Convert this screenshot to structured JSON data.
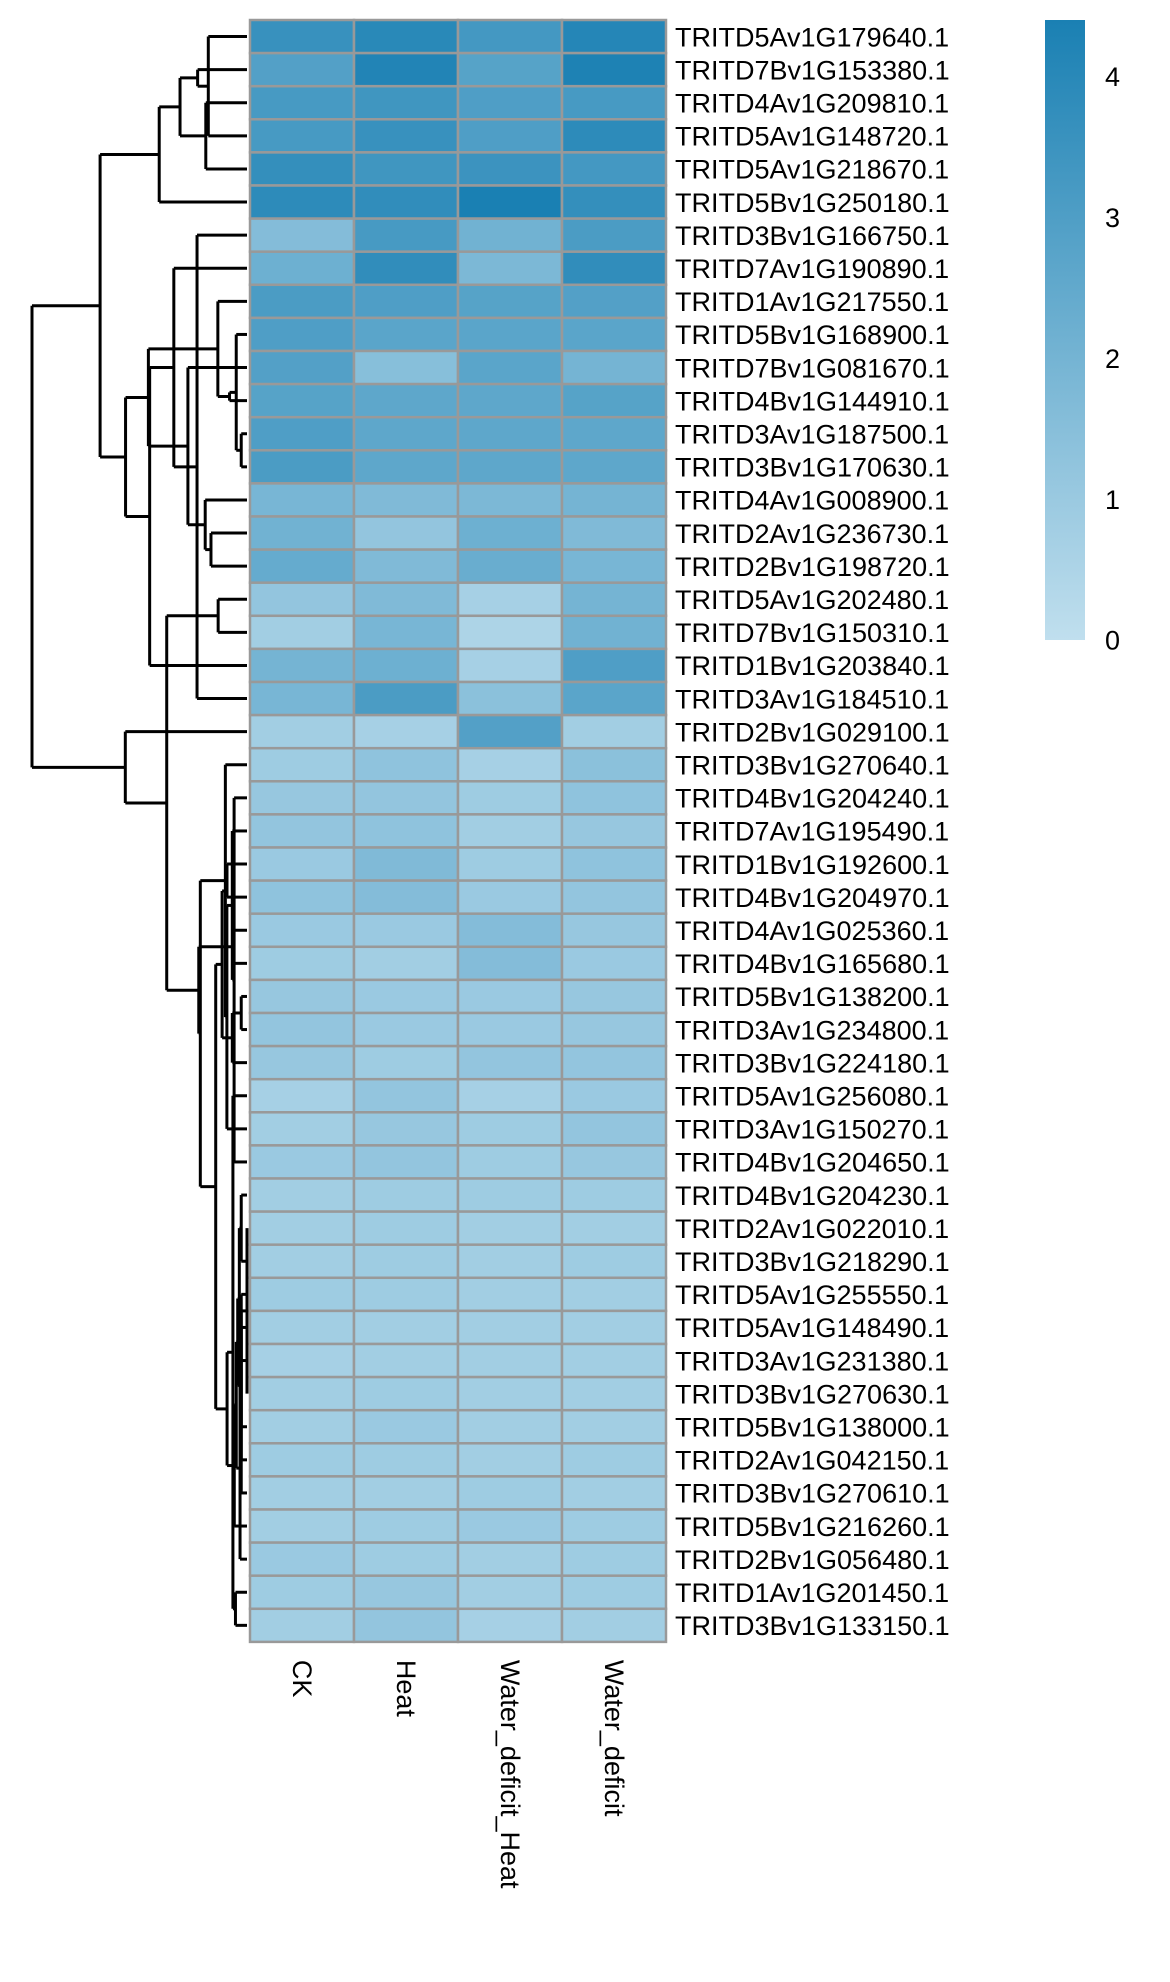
{
  "chart_data": {
    "type": "heatmap",
    "title": "",
    "xlabel": "",
    "ylabel": "",
    "columns": [
      "CK",
      "Heat",
      "Water_deficit_Heat",
      "Water_deficit"
    ],
    "rows": [
      "TRITD5Av1G179640.1",
      "TRITD7Bv1G153380.1",
      "TRITD4Av1G209810.1",
      "TRITD5Av1G148720.1",
      "TRITD5Av1G218670.1",
      "TRITD5Bv1G250180.1",
      "TRITD3Bv1G166750.1",
      "TRITD7Av1G190890.1",
      "TRITD1Av1G217550.1",
      "TRITD5Bv1G168900.1",
      "TRITD7Bv1G081670.1",
      "TRITD4Bv1G144910.1",
      "TRITD3Av1G187500.1",
      "TRITD3Bv1G170630.1",
      "TRITD4Av1G008900.1",
      "TRITD2Av1G236730.1",
      "TRITD2Bv1G198720.1",
      "TRITD5Av1G202480.1",
      "TRITD7Bv1G150310.1",
      "TRITD1Bv1G203840.1",
      "TRITD3Av1G184510.1",
      "TRITD2Bv1G029100.1",
      "TRITD3Bv1G270640.1",
      "TRITD4Bv1G204240.1",
      "TRITD7Av1G195490.1",
      "TRITD1Bv1G192600.1",
      "TRITD4Bv1G204970.1",
      "TRITD4Av1G025360.1",
      "TRITD4Bv1G165680.1",
      "TRITD5Bv1G138200.1",
      "TRITD3Av1G234800.1",
      "TRITD3Bv1G224180.1",
      "TRITD5Av1G256080.1",
      "TRITD3Av1G150270.1",
      "TRITD4Bv1G204650.1",
      "TRITD4Bv1G204230.1",
      "TRITD2Av1G022010.1",
      "TRITD3Bv1G218290.1",
      "TRITD5Av1G255550.1",
      "TRITD5Av1G148490.1",
      "TRITD3Av1G231380.1",
      "TRITD3Bv1G270630.1",
      "TRITD5Bv1G138000.1",
      "TRITD2Av1G042150.1",
      "TRITD3Bv1G270610.1",
      "TRITD5Bv1G216260.1",
      "TRITD2Bv1G056480.1",
      "TRITD1Av1G201450.1",
      "TRITD3Bv1G133150.1"
    ],
    "values": [
      [
        3.6,
        4.0,
        3.3,
        4.1
      ],
      [
        2.9,
        4.2,
        2.8,
        4.3
      ],
      [
        3.2,
        3.4,
        3.0,
        3.2
      ],
      [
        3.2,
        3.6,
        3.0,
        3.9
      ],
      [
        3.7,
        3.4,
        3.5,
        3.3
      ],
      [
        3.9,
        3.8,
        4.4,
        3.7
      ],
      [
        1.6,
        3.2,
        2.1,
        3.1
      ],
      [
        2.2,
        3.8,
        1.8,
        3.8
      ],
      [
        3.1,
        3.0,
        2.8,
        2.9
      ],
      [
        3.0,
        2.7,
        2.7,
        2.7
      ],
      [
        2.9,
        1.5,
        2.7,
        2.0
      ],
      [
        2.8,
        2.6,
        2.6,
        2.8
      ],
      [
        3.0,
        2.6,
        2.6,
        2.6
      ],
      [
        3.1,
        2.6,
        2.6,
        2.6
      ],
      [
        1.9,
        1.7,
        1.8,
        2.0
      ],
      [
        2.1,
        1.2,
        2.2,
        1.7
      ],
      [
        2.4,
        1.7,
        2.3,
        1.9
      ],
      [
        1.2,
        1.7,
        0.7,
        2.0
      ],
      [
        0.8,
        1.9,
        0.5,
        2.1
      ],
      [
        2.0,
        2.2,
        0.7,
        3.0
      ],
      [
        1.9,
        3.1,
        1.4,
        2.7
      ],
      [
        0.8,
        0.7,
        2.9,
        0.8
      ],
      [
        0.9,
        1.3,
        0.7,
        1.4
      ],
      [
        1.1,
        1.2,
        0.9,
        1.3
      ],
      [
        1.2,
        1.3,
        0.8,
        1.1
      ],
      [
        1.0,
        1.7,
        0.9,
        1.3
      ],
      [
        1.3,
        1.6,
        1.0,
        1.2
      ],
      [
        1.0,
        1.0,
        1.6,
        1.1
      ],
      [
        0.9,
        0.8,
        1.6,
        1.0
      ],
      [
        1.1,
        1.0,
        1.0,
        1.1
      ],
      [
        1.2,
        1.0,
        1.0,
        1.1
      ],
      [
        1.1,
        0.9,
        1.2,
        1.2
      ],
      [
        0.7,
        1.2,
        0.7,
        1.0
      ],
      [
        0.8,
        1.1,
        0.9,
        1.2
      ],
      [
        1.0,
        1.2,
        0.9,
        1.1
      ],
      [
        0.8,
        0.9,
        0.9,
        0.9
      ],
      [
        0.8,
        0.9,
        0.8,
        0.8
      ],
      [
        0.8,
        0.9,
        0.8,
        0.9
      ],
      [
        0.9,
        0.9,
        0.8,
        0.8
      ],
      [
        0.8,
        0.8,
        0.8,
        0.8
      ],
      [
        0.7,
        0.8,
        0.8,
        0.8
      ],
      [
        0.8,
        0.9,
        0.8,
        0.8
      ],
      [
        0.8,
        1.0,
        0.8,
        0.8
      ],
      [
        0.9,
        0.9,
        0.8,
        0.9
      ],
      [
        0.8,
        0.8,
        0.9,
        0.8
      ],
      [
        0.8,
        0.9,
        1.0,
        0.9
      ],
      [
        1.0,
        0.9,
        0.8,
        0.9
      ],
      [
        0.9,
        1.1,
        0.8,
        0.9
      ],
      [
        0.8,
        1.2,
        0.7,
        0.8
      ]
    ],
    "colorbar": {
      "ticks": [
        0,
        1,
        2,
        3,
        4
      ],
      "range": [
        0,
        4.4
      ],
      "low_color": "#c0dfee",
      "high_color": "#1a80b3"
    },
    "cell_border_color": "#999999",
    "dendrogram_color": "#000000",
    "legend_position": "top-right"
  }
}
